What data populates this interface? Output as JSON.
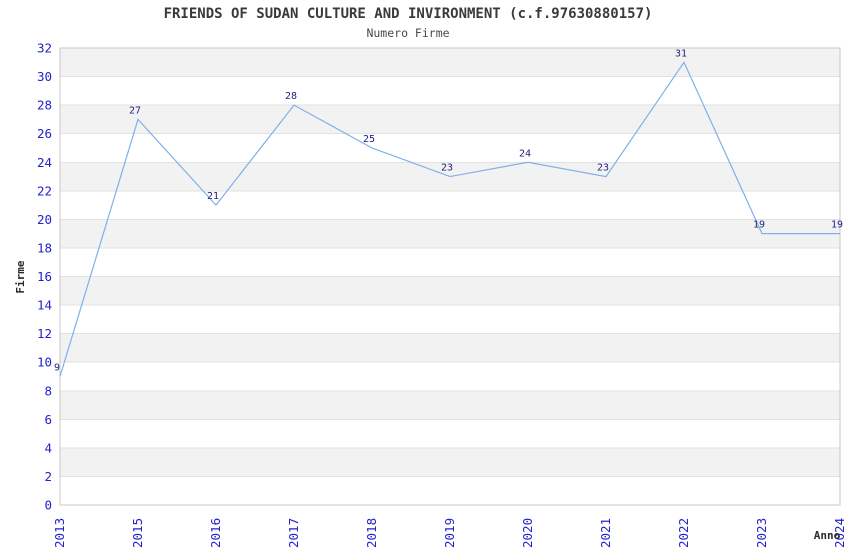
{
  "chart_data": {
    "type": "line",
    "title": "FRIENDS OF SUDAN CULTURE AND INVIRONMENT (c.f.97630880157)",
    "subtitle": "Numero Firme",
    "xlabel": "Anno",
    "ylabel": "Firme",
    "categories": [
      "2013",
      "2015",
      "2016",
      "2017",
      "2018",
      "2019",
      "2020",
      "2021",
      "2022",
      "2023",
      "2024"
    ],
    "values": [
      9,
      27,
      21,
      28,
      25,
      23,
      24,
      23,
      31,
      19,
      19
    ],
    "ylim": [
      0,
      32
    ],
    "ytick_step": 2,
    "grid": "horizontal",
    "legend": "none",
    "band_pattern": "gray stripes every 2 units starting at y=2",
    "colors": {
      "line": "#7fb0e8",
      "point_label": "#232382",
      "tick_label": "#2323cc",
      "band": "#f2f2f2",
      "gridline": "#e2e2e2",
      "border": "#c8c8c8",
      "heading": "#3a3a3a"
    }
  }
}
